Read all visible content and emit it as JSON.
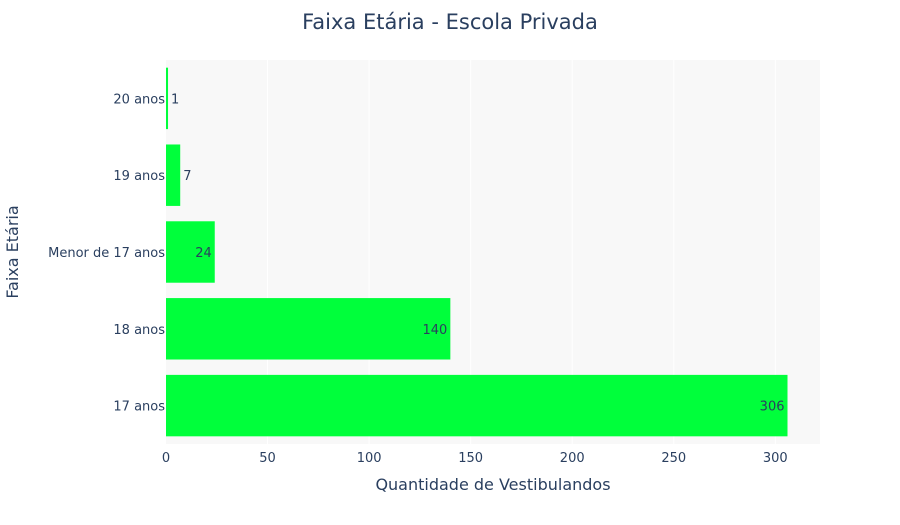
{
  "chart_data": {
    "type": "bar",
    "orientation": "horizontal",
    "title": "Faixa Etária - Escola Privada",
    "xlabel": "Quantidade de Vestibulandos",
    "ylabel": "Faixa Etária",
    "categories": [
      "17 anos",
      "18 anos",
      "Menor de 17 anos",
      "19 anos",
      "20 anos"
    ],
    "values": [
      306,
      140,
      24,
      7,
      1
    ],
    "xlim": [
      0,
      322
    ],
    "xticks": [
      0,
      50,
      100,
      150,
      200,
      250,
      300
    ],
    "grid": true,
    "colors": {
      "bar": "#00ff3b",
      "plot_bg": "#f8f8f8",
      "grid": "#ffffff"
    }
  }
}
